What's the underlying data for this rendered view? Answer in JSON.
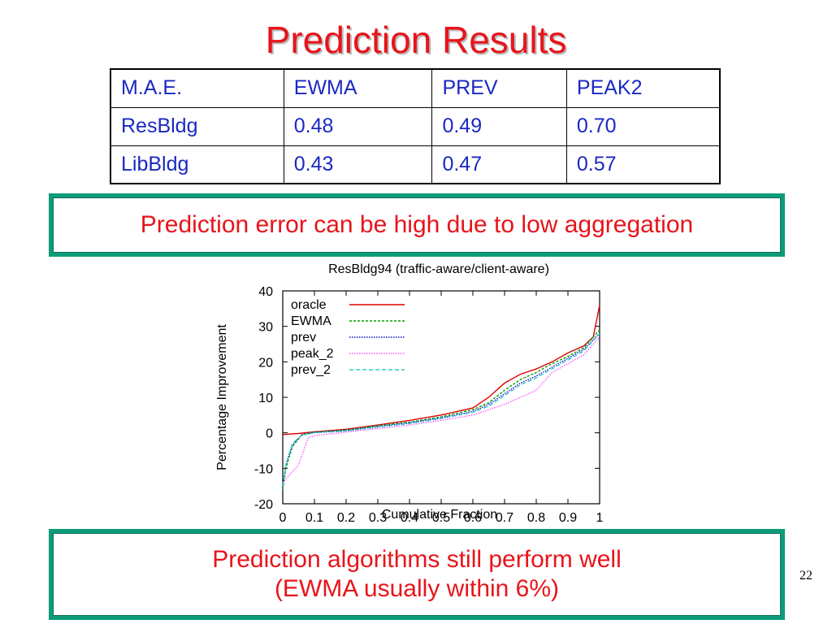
{
  "slide": {
    "title": "Prediction Results",
    "number": "22"
  },
  "table": {
    "header": [
      "M.A.E.",
      "EWMA",
      "PREV",
      "PEAK2"
    ],
    "rows": [
      [
        "ResBldg",
        "0.48",
        "0.49",
        "0.70"
      ],
      [
        "LibBldg",
        "0.43",
        "0.47",
        "0.57"
      ]
    ]
  },
  "callouts": {
    "top": "Prediction error can be high due to low aggregation",
    "bottom_line1": "Prediction algorithms still perform well",
    "bottom_line2": "(EWMA usually within 6%)"
  },
  "colors": {
    "title": "#e8141b",
    "table_text": "#1a29c2",
    "callout_border": "#0d9c7a"
  },
  "chart_data": {
    "type": "line",
    "title": "ResBldg94 (traffic-aware/client-aware)",
    "xlabel": "Cumulative Fraction",
    "ylabel": "Percentage Improvement",
    "xlim": [
      0,
      1
    ],
    "ylim": [
      -20,
      40
    ],
    "xticks": [
      "0",
      "0.1",
      "0.2",
      "0.3",
      "0.4",
      "0.5",
      "0.6",
      "0.7",
      "0.8",
      "0.9",
      "1"
    ],
    "yticks": [
      "-20",
      "-10",
      "0",
      "10",
      "20",
      "30",
      "40"
    ],
    "legend_position": "top-left",
    "series": [
      {
        "name": "oracle",
        "color": "#e00000",
        "dash": "",
        "x": [
          0,
          0.05,
          0.1,
          0.2,
          0.3,
          0.4,
          0.5,
          0.6,
          0.65,
          0.7,
          0.75,
          0.8,
          0.85,
          0.9,
          0.95,
          0.98,
          1.0
        ],
        "y": [
          -0.5,
          -0.2,
          0.3,
          1.0,
          2.2,
          3.5,
          5.0,
          7.0,
          10.0,
          14.0,
          16.5,
          18.0,
          20.0,
          22.5,
          24.5,
          27.0,
          36.0
        ]
      },
      {
        "name": "EWMA",
        "color": "#00a000",
        "dash": "3,2",
        "x": [
          0,
          0.01,
          0.03,
          0.06,
          0.1,
          0.2,
          0.3,
          0.4,
          0.5,
          0.6,
          0.65,
          0.7,
          0.75,
          0.8,
          0.85,
          0.9,
          0.95,
          1.0
        ],
        "y": [
          -16,
          -10,
          -4,
          -0.5,
          0.2,
          0.8,
          2.0,
          3.0,
          4.5,
          6.5,
          8.5,
          12.0,
          15.0,
          17.0,
          19.5,
          21.5,
          24.0,
          29.0
        ]
      },
      {
        "name": "prev",
        "color": "#1010d0",
        "dash": "1.5,1.5",
        "x": [
          0,
          0.01,
          0.03,
          0.06,
          0.1,
          0.2,
          0.3,
          0.4,
          0.5,
          0.6,
          0.65,
          0.7,
          0.75,
          0.8,
          0.85,
          0.9,
          0.95,
          1.0
        ],
        "y": [
          -15,
          -9,
          -3.5,
          -0.6,
          0.1,
          0.6,
          1.8,
          2.8,
          4.2,
          6.0,
          8.0,
          11.0,
          14.0,
          16.0,
          18.5,
          21.0,
          23.5,
          28.0
        ]
      },
      {
        "name": "peak_2",
        "color": "#ff55ff",
        "dash": "1.5,1.5",
        "x": [
          0,
          0.02,
          0.05,
          0.08,
          0.1,
          0.2,
          0.3,
          0.4,
          0.5,
          0.6,
          0.65,
          0.7,
          0.75,
          0.8,
          0.85,
          0.9,
          0.95,
          1.0
        ],
        "y": [
          -14,
          -12,
          -9,
          -1.5,
          -0.8,
          0.2,
          1.2,
          2.2,
          3.5,
          5.0,
          6.5,
          8.0,
          10.0,
          12.0,
          17.0,
          19.5,
          22.0,
          27.0
        ]
      },
      {
        "name": "prev_2",
        "color": "#33cccc",
        "dash": "5,3",
        "x": [
          0,
          0.01,
          0.03,
          0.06,
          0.1,
          0.2,
          0.3,
          0.4,
          0.5,
          0.6,
          0.65,
          0.7,
          0.75,
          0.8,
          0.85,
          0.9,
          0.95,
          1.0
        ],
        "y": [
          -15,
          -9,
          -3,
          -0.7,
          0.0,
          0.5,
          1.6,
          2.6,
          4.0,
          5.8,
          7.5,
          10.5,
          13.5,
          15.5,
          18.0,
          20.5,
          23.0,
          28.0
        ]
      }
    ]
  }
}
